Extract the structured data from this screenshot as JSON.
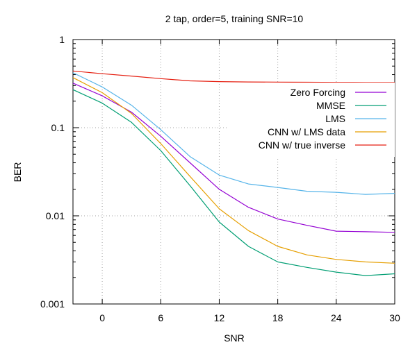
{
  "chart_data": {
    "type": "line",
    "title": "2 tap, order=5, training SNR=10",
    "xlabel": "SNR",
    "ylabel": "BER",
    "xlim": [
      -3,
      30
    ],
    "ylim": [
      0.001,
      1
    ],
    "yscale": "log",
    "grid": true,
    "legend_position": "top-right",
    "x_ticks": [
      0,
      6,
      12,
      18,
      24,
      30
    ],
    "x_tick_labels": [
      "0",
      "6",
      "12",
      "18",
      "24",
      "30"
    ],
    "y_ticks": [
      0.001,
      0.01,
      0.1,
      1
    ],
    "y_tick_labels": [
      "0.001",
      "0.01",
      "0.1",
      "1"
    ],
    "x": [
      -3,
      0,
      3,
      6,
      9,
      12,
      15,
      18,
      21,
      24,
      27,
      30
    ],
    "series": [
      {
        "name": "Zero Forcing",
        "color": "#9400d3",
        "values": [
          0.32,
          0.23,
          0.15,
          0.08,
          0.04,
          0.02,
          0.0125,
          0.0092,
          0.0078,
          0.0067,
          0.0066,
          0.0065
        ]
      },
      {
        "name": "MMSE",
        "color": "#009e73",
        "values": [
          0.27,
          0.19,
          0.115,
          0.055,
          0.022,
          0.0085,
          0.0045,
          0.003,
          0.0026,
          0.0023,
          0.0021,
          0.0022
        ]
      },
      {
        "name": "LMS",
        "color": "#56b4e9",
        "values": [
          0.42,
          0.29,
          0.18,
          0.095,
          0.047,
          0.029,
          0.023,
          0.021,
          0.019,
          0.0185,
          0.0175,
          0.018
        ]
      },
      {
        "name": "CNN w/ LMS data",
        "color": "#e69f00",
        "values": [
          0.37,
          0.25,
          0.145,
          0.066,
          0.028,
          0.012,
          0.0068,
          0.0045,
          0.0036,
          0.0032,
          0.003,
          0.0029
        ]
      },
      {
        "name": "CNN w/ true inverse",
        "color": "#e51e10",
        "values": [
          0.44,
          0.41,
          0.385,
          0.36,
          0.34,
          0.333,
          0.33,
          0.329,
          0.328,
          0.327,
          0.326,
          0.326
        ]
      }
    ]
  }
}
